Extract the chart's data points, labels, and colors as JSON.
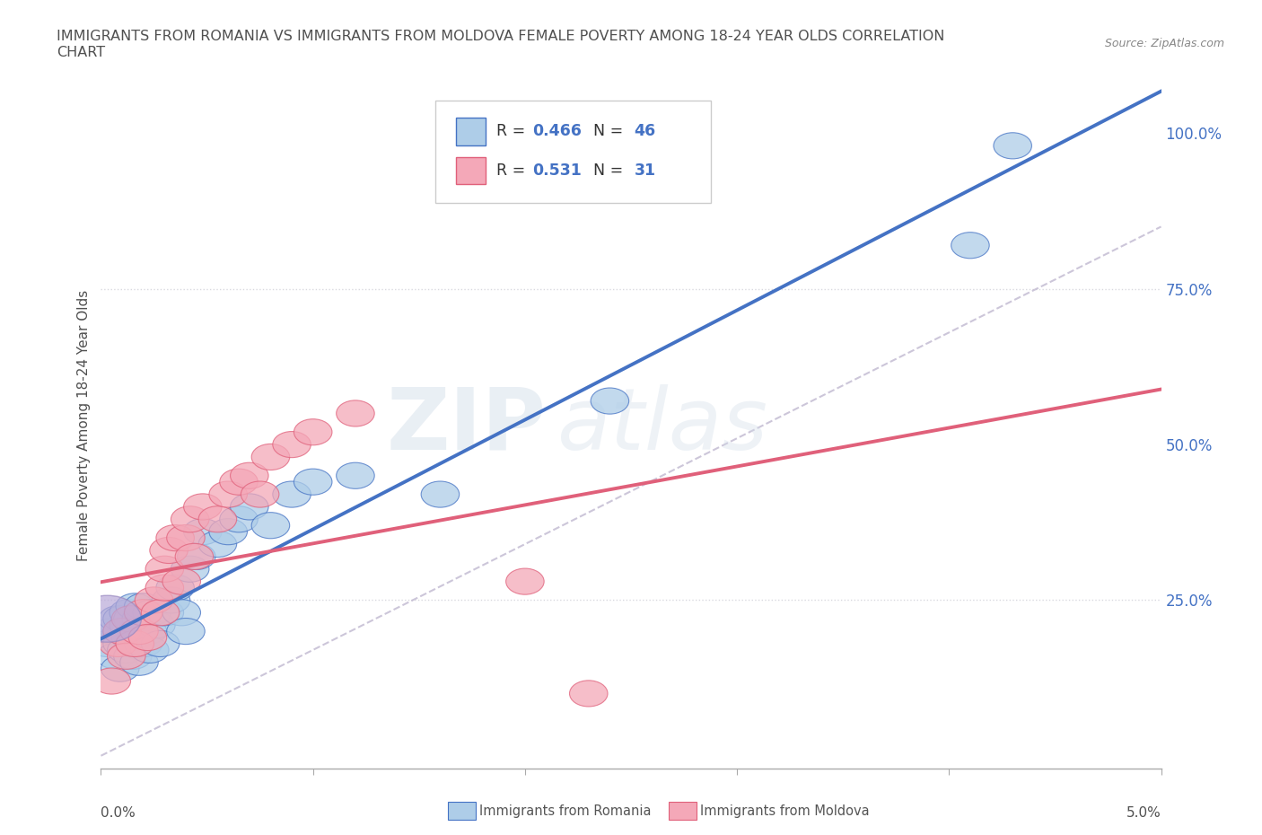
{
  "title_line1": "IMMIGRANTS FROM ROMANIA VS IMMIGRANTS FROM MOLDOVA FEMALE POVERTY AMONG 18-24 YEAR OLDS CORRELATION",
  "title_line2": "CHART",
  "source": "Source: ZipAtlas.com",
  "ylabel": "Female Poverty Among 18-24 Year Olds",
  "xlim": [
    0.0,
    0.05
  ],
  "ylim": [
    -0.02,
    1.08
  ],
  "ytick_labels": [
    "25.0%",
    "50.0%",
    "75.0%",
    "100.0%"
  ],
  "ytick_values": [
    0.25,
    0.5,
    0.75,
    1.0
  ],
  "r_romania": 0.466,
  "n_romania": 46,
  "r_moldova": 0.531,
  "n_moldova": 31,
  "color_romania": "#aecde8",
  "color_moldova": "#f4a8b8",
  "color_line_romania": "#4472c4",
  "color_line_moldova": "#e0607a",
  "color_dashed_line": "#c0b8d0",
  "romania_x": [
    0.0003,
    0.0005,
    0.0007,
    0.0008,
    0.0009,
    0.001,
    0.001,
    0.001,
    0.0012,
    0.0013,
    0.0013,
    0.0014,
    0.0015,
    0.0015,
    0.0016,
    0.0016,
    0.0017,
    0.0018,
    0.0019,
    0.002,
    0.002,
    0.0022,
    0.0023,
    0.0024,
    0.0026,
    0.0028,
    0.003,
    0.0033,
    0.0035,
    0.0038,
    0.004,
    0.0042,
    0.0045,
    0.0048,
    0.0055,
    0.006,
    0.0065,
    0.007,
    0.008,
    0.009,
    0.01,
    0.012,
    0.016,
    0.024,
    0.041,
    0.043
  ],
  "romania_y": [
    0.18,
    0.2,
    0.16,
    0.22,
    0.14,
    0.2,
    0.18,
    0.22,
    0.17,
    0.21,
    0.23,
    0.19,
    0.16,
    0.22,
    0.18,
    0.24,
    0.2,
    0.15,
    0.22,
    0.18,
    0.24,
    0.2,
    0.17,
    0.23,
    0.21,
    0.18,
    0.23,
    0.25,
    0.27,
    0.23,
    0.2,
    0.3,
    0.32,
    0.36,
    0.34,
    0.36,
    0.38,
    0.4,
    0.37,
    0.42,
    0.44,
    0.45,
    0.42,
    0.57,
    0.82,
    0.98
  ],
  "moldova_x": [
    0.0005,
    0.0008,
    0.001,
    0.0012,
    0.0014,
    0.0016,
    0.0018,
    0.002,
    0.0022,
    0.0025,
    0.0028,
    0.003,
    0.003,
    0.0032,
    0.0035,
    0.0038,
    0.004,
    0.0042,
    0.0044,
    0.0048,
    0.0055,
    0.006,
    0.0065,
    0.007,
    0.0075,
    0.008,
    0.009,
    0.01,
    0.012,
    0.02,
    0.023
  ],
  "moldova_y": [
    0.12,
    0.18,
    0.2,
    0.16,
    0.22,
    0.18,
    0.2,
    0.23,
    0.19,
    0.25,
    0.23,
    0.27,
    0.3,
    0.33,
    0.35,
    0.28,
    0.35,
    0.38,
    0.32,
    0.4,
    0.38,
    0.42,
    0.44,
    0.45,
    0.42,
    0.48,
    0.5,
    0.52,
    0.55,
    0.28,
    0.1
  ],
  "watermark_zip": "ZIP",
  "watermark_atlas": "atlas",
  "background_color": "#ffffff",
  "grid_color": "#cccccc",
  "title_color": "#505050",
  "axis_label_color": "#505050"
}
